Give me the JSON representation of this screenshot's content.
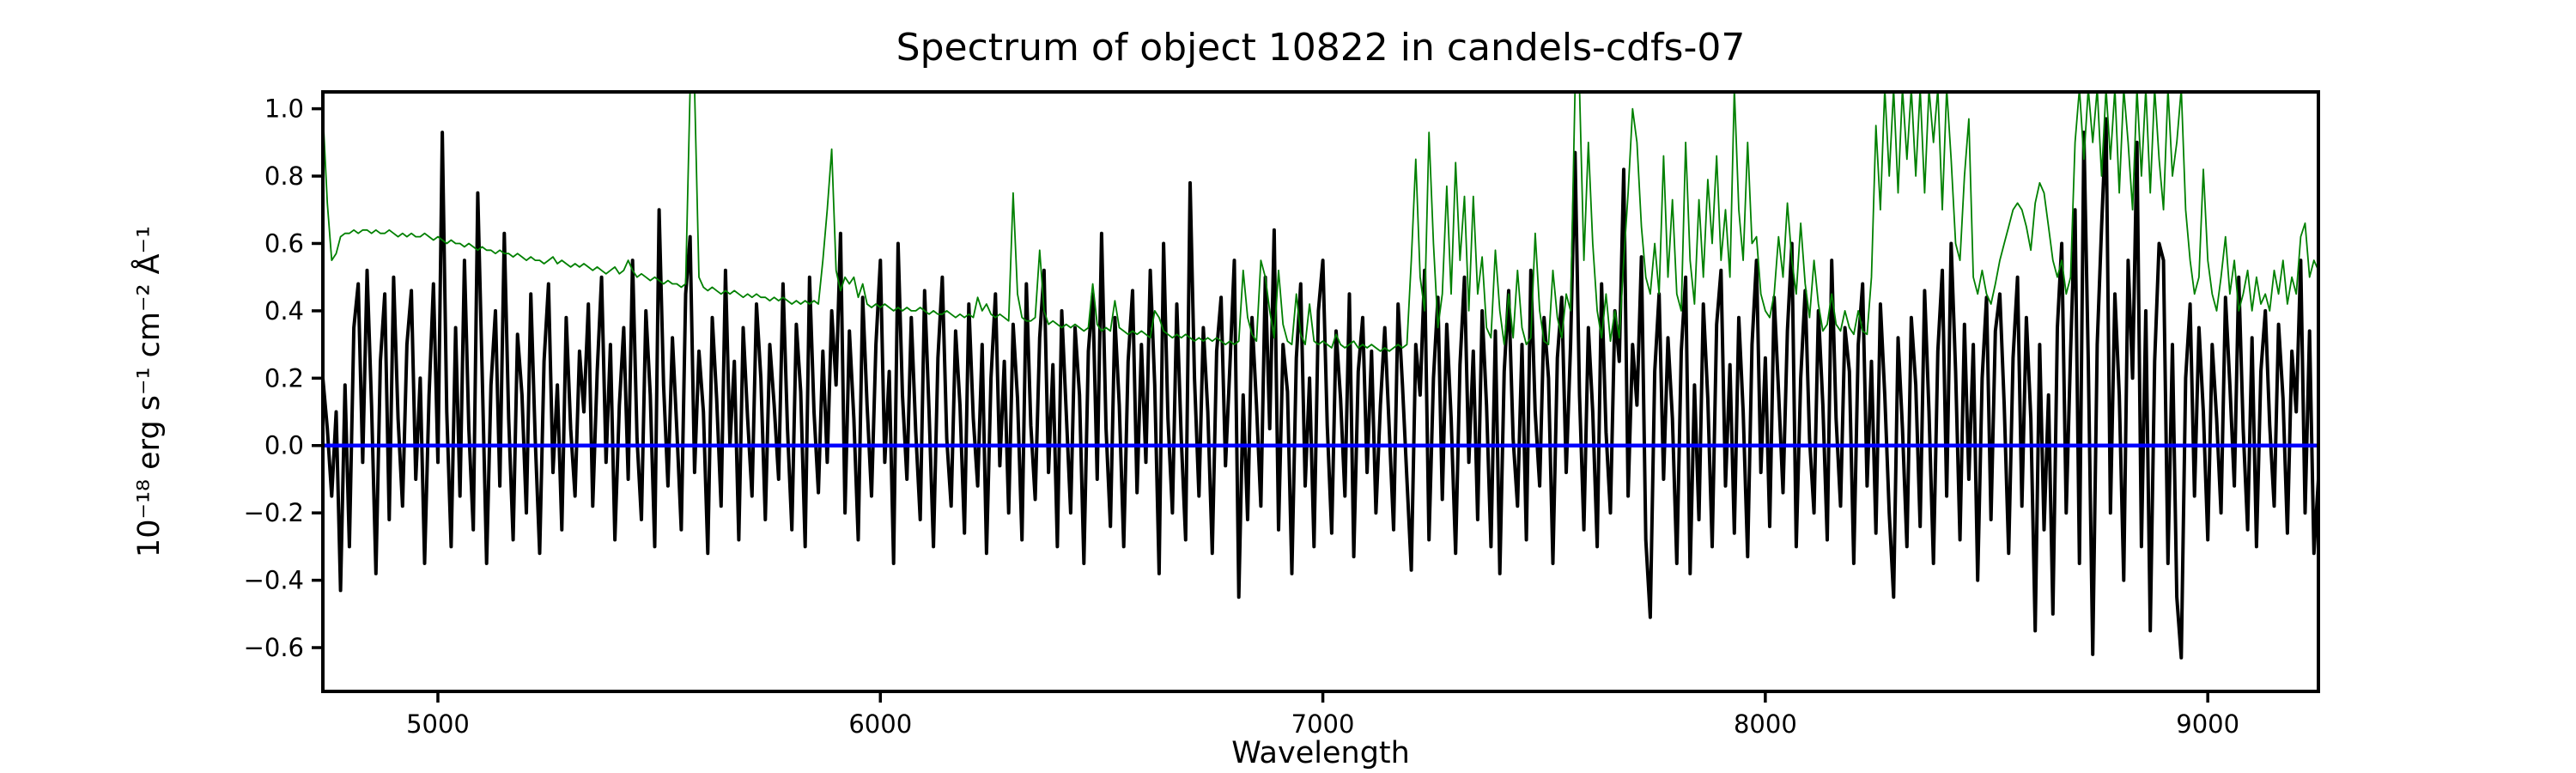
{
  "figure": {
    "title": "Spectrum of object 10822 in candels-cdfs-07",
    "xlabel": "Wavelength",
    "ylabel": "10⁻¹⁸ erg s⁻¹ cm⁻² Å⁻¹",
    "background_color": "#ffffff",
    "axis_color": "#000000"
  },
  "chart_data": {
    "type": "line",
    "title": "Spectrum of object 10822 in candels-cdfs-07",
    "xlabel": "Wavelength",
    "ylabel": "10⁻¹⁸ erg s⁻¹ cm⁻² Å⁻¹",
    "xlim": [
      4740,
      9250
    ],
    "ylim": [
      -0.73,
      1.05
    ],
    "xticks": [
      5000,
      6000,
      7000,
      8000,
      9000
    ],
    "yticks": [
      1.0,
      0.8,
      0.6,
      0.4,
      0.2,
      0.0,
      -0.2,
      -0.4,
      -0.6
    ],
    "grid": false,
    "legend": null,
    "x_start": 4740,
    "x_step": 10,
    "series": [
      {
        "name": "object-flux-spectrum",
        "color": "#000000",
        "linewidth": 4,
        "values": [
          0.2,
          0.05,
          -0.15,
          0.1,
          -0.43,
          0.18,
          -0.3,
          0.35,
          0.48,
          -0.05,
          0.52,
          0.12,
          -0.38,
          0.25,
          0.45,
          -0.22,
          0.5,
          0.08,
          -0.18,
          0.3,
          0.46,
          -0.1,
          0.2,
          -0.35,
          0.15,
          0.48,
          -0.05,
          0.93,
          0.1,
          -0.3,
          0.35,
          -0.15,
          0.55,
          0.05,
          -0.25,
          0.75,
          0.22,
          -0.35,
          0.18,
          0.4,
          -0.12,
          0.63,
          0.08,
          -0.28,
          0.33,
          0.15,
          -0.2,
          0.45,
          0.02,
          -0.32,
          0.25,
          0.48,
          -0.08,
          0.18,
          -0.25,
          0.38,
          0.05,
          -0.15,
          0.28,
          0.1,
          0.42,
          -0.18,
          0.22,
          0.5,
          -0.05,
          0.3,
          -0.28,
          0.12,
          0.35,
          -0.1,
          0.55,
          0.02,
          -0.22,
          0.4,
          0.15,
          -0.3,
          0.7,
          0.18,
          -0.12,
          0.32,
          0.05,
          -0.25,
          0.45,
          0.62,
          -0.08,
          0.28,
          0.1,
          -0.32,
          0.38,
          0.14,
          -0.18,
          0.52,
          0.0,
          0.25,
          -0.28,
          0.35,
          0.08,
          -0.15,
          0.42,
          0.2,
          -0.22,
          0.3,
          0.12,
          -0.1,
          0.48,
          0.05,
          -0.25,
          0.36,
          0.16,
          -0.3,
          0.5,
          0.1,
          -0.14,
          0.28,
          -0.05,
          0.4,
          0.18,
          0.63,
          -0.2,
          0.34,
          0.08,
          -0.28,
          0.44,
          0.12,
          -0.15,
          0.3,
          0.55,
          -0.05,
          0.22,
          -0.35,
          0.6,
          0.15,
          -0.1,
          0.38,
          0.04,
          -0.22,
          0.46,
          0.1,
          -0.3,
          0.26,
          0.5,
          0.02,
          -0.18,
          0.34,
          0.12,
          -0.26,
          0.42,
          0.08,
          -0.12,
          0.3,
          -0.32,
          0.2,
          0.45,
          -0.06,
          0.25,
          -0.2,
          0.36,
          0.14,
          -0.28,
          0.48,
          0.06,
          -0.16,
          0.32,
          0.52,
          -0.08,
          0.24,
          -0.3,
          0.4,
          0.1,
          -0.2,
          0.35,
          0.15,
          -0.35,
          0.28,
          0.45,
          -0.1,
          0.63,
          0.05,
          -0.24,
          0.38,
          0.12,
          -0.3,
          0.25,
          0.46,
          -0.14,
          0.3,
          -0.05,
          0.52,
          0.18,
          -0.38,
          0.6,
          0.08,
          -0.2,
          0.42,
          0.02,
          -0.28,
          0.78,
          0.2,
          -0.15,
          0.35,
          0.1,
          -0.32,
          0.28,
          0.44,
          -0.06,
          0.24,
          0.55,
          -0.45,
          0.15,
          -0.22,
          0.38,
          0.12,
          -0.18,
          0.5,
          0.05,
          0.64,
          -0.25,
          0.3,
          0.16,
          -0.38,
          0.26,
          0.48,
          -0.12,
          0.2,
          -0.3,
          0.4,
          0.55,
          0.06,
          -0.26,
          0.34,
          0.14,
          -0.15,
          0.45,
          -0.33,
          0.22,
          0.38,
          -0.08,
          0.28,
          -0.2,
          0.12,
          0.35,
          0.05,
          -0.25,
          0.42,
          0.18,
          -0.1,
          -0.37,
          0.3,
          0.15,
          0.52,
          -0.28,
          0.2,
          0.44,
          -0.16,
          0.36,
          0.08,
          -0.32,
          0.24,
          0.5,
          -0.05,
          0.28,
          -0.22,
          0.4,
          0.12,
          -0.3,
          0.34,
          -0.38,
          0.22,
          0.46,
          0.02,
          -0.18,
          0.3,
          -0.28,
          0.52,
          0.1,
          -0.12,
          0.38,
          0.2,
          -0.35,
          0.26,
          0.44,
          -0.08,
          0.3,
          0.87,
          0.15,
          -0.25,
          0.35,
          0.1,
          -0.3,
          0.48,
          0.04,
          -0.2,
          0.4,
          0.25,
          0.82,
          -0.15,
          0.3,
          0.12,
          0.56,
          -0.28,
          -0.51,
          0.22,
          0.45,
          -0.1,
          0.32,
          0.08,
          -0.35,
          0.28,
          0.5,
          -0.38,
          0.18,
          -0.22,
          0.42,
          0.14,
          -0.3,
          0.36,
          0.52,
          -0.12,
          0.24,
          -0.26,
          0.38,
          0.1,
          -0.33,
          0.3,
          0.55,
          -0.08,
          0.26,
          -0.24,
          0.44,
          0.16,
          -0.14,
          0.34,
          0.6,
          -0.3,
          0.2,
          0.46,
          0.02,
          -0.2,
          0.4,
          0.12,
          -0.28,
          0.55,
          0.08,
          -0.18,
          0.35,
          0.22,
          -0.35,
          0.3,
          0.48,
          -0.12,
          0.25,
          -0.26,
          0.42,
          0.15,
          -0.2,
          -0.45,
          0.32,
          0.05,
          -0.3,
          0.38,
          0.18,
          -0.24,
          0.46,
          0.1,
          -0.35,
          0.28,
          0.52,
          -0.15,
          0.6,
          0.22,
          -0.28,
          0.36,
          -0.1,
          0.3,
          -0.4,
          0.2,
          0.44,
          -0.22,
          0.34,
          0.45,
          0.12,
          -0.32,
          0.26,
          0.5,
          -0.18,
          0.38,
          0.08,
          -0.55,
          0.3,
          -0.25,
          0.15,
          -0.5,
          0.35,
          0.6,
          -0.2,
          0.28,
          0.7,
          -0.35,
          0.93,
          0.25,
          -0.62,
          0.3,
          0.65,
          0.97,
          -0.2,
          0.45,
          0.15,
          -0.4,
          0.55,
          0.2,
          0.9,
          -0.3,
          0.4,
          -0.55,
          0.25,
          0.6,
          0.55,
          -0.35,
          0.3,
          -0.45,
          -0.63,
          0.2,
          0.42,
          -0.15,
          0.35,
          0.1,
          -0.28,
          0.3,
          0.08,
          -0.2,
          0.44,
          0.18,
          -0.12,
          0.5,
          0.05,
          -0.25,
          0.32,
          -0.3,
          0.22,
          0.4,
          0.06,
          -0.18,
          0.36,
          0.14,
          -0.26,
          0.28,
          0.1,
          0.55,
          -0.2,
          0.34,
          -0.32,
          -0.1
        ]
      },
      {
        "name": "noise-spectrum",
        "color": "#008000",
        "linewidth": 1.8,
        "values": [
          0.99,
          0.72,
          0.55,
          0.57,
          0.62,
          0.63,
          0.63,
          0.64,
          0.63,
          0.64,
          0.64,
          0.63,
          0.64,
          0.63,
          0.63,
          0.64,
          0.63,
          0.62,
          0.63,
          0.62,
          0.63,
          0.62,
          0.62,
          0.63,
          0.62,
          0.61,
          0.62,
          0.61,
          0.6,
          0.61,
          0.6,
          0.6,
          0.59,
          0.6,
          0.59,
          0.58,
          0.59,
          0.58,
          0.58,
          0.57,
          0.58,
          0.57,
          0.57,
          0.56,
          0.57,
          0.56,
          0.55,
          0.56,
          0.55,
          0.55,
          0.54,
          0.55,
          0.56,
          0.54,
          0.55,
          0.54,
          0.53,
          0.54,
          0.53,
          0.54,
          0.53,
          0.52,
          0.53,
          0.52,
          0.51,
          0.52,
          0.53,
          0.51,
          0.52,
          0.55,
          0.52,
          0.5,
          0.51,
          0.5,
          0.49,
          0.5,
          0.49,
          0.48,
          0.49,
          0.48,
          0.48,
          0.47,
          0.48,
          1.06,
          1.06,
          0.5,
          0.47,
          0.46,
          0.47,
          0.46,
          0.45,
          0.46,
          0.45,
          0.46,
          0.45,
          0.44,
          0.45,
          0.44,
          0.45,
          0.44,
          0.44,
          0.43,
          0.44,
          0.43,
          0.44,
          0.43,
          0.42,
          0.43,
          0.42,
          0.43,
          0.42,
          0.43,
          0.42,
          0.55,
          0.7,
          0.88,
          0.52,
          0.46,
          0.5,
          0.48,
          0.5,
          0.44,
          0.48,
          0.42,
          0.41,
          0.42,
          0.41,
          0.42,
          0.41,
          0.4,
          0.41,
          0.4,
          0.41,
          0.4,
          0.4,
          0.41,
          0.4,
          0.39,
          0.4,
          0.39,
          0.39,
          0.4,
          0.39,
          0.38,
          0.39,
          0.38,
          0.39,
          0.38,
          0.44,
          0.4,
          0.42,
          0.39,
          0.38,
          0.39,
          0.38,
          0.37,
          0.75,
          0.45,
          0.38,
          0.37,
          0.37,
          0.38,
          0.58,
          0.4,
          0.36,
          0.37,
          0.36,
          0.35,
          0.36,
          0.35,
          0.36,
          0.35,
          0.34,
          0.35,
          0.48,
          0.36,
          0.34,
          0.35,
          0.34,
          0.43,
          0.35,
          0.34,
          0.33,
          0.34,
          0.33,
          0.34,
          0.33,
          0.32,
          0.4,
          0.38,
          0.34,
          0.33,
          0.32,
          0.33,
          0.32,
          0.33,
          0.32,
          0.31,
          0.32,
          0.31,
          0.32,
          0.31,
          0.32,
          0.31,
          0.3,
          0.31,
          0.3,
          0.31,
          0.52,
          0.38,
          0.33,
          0.31,
          0.55,
          0.5,
          0.4,
          0.32,
          0.52,
          0.36,
          0.31,
          0.3,
          0.45,
          0.33,
          0.3,
          0.42,
          0.31,
          0.3,
          0.31,
          0.3,
          0.29,
          0.33,
          0.3,
          0.29,
          0.3,
          0.31,
          0.29,
          0.3,
          0.29,
          0.3,
          0.29,
          0.28,
          0.29,
          0.28,
          0.29,
          0.3,
          0.29,
          0.3,
          0.55,
          0.85,
          0.5,
          0.4,
          0.93,
          0.6,
          0.35,
          0.45,
          0.77,
          0.45,
          0.84,
          0.55,
          0.74,
          0.4,
          0.74,
          0.45,
          0.56,
          0.35,
          0.32,
          0.58,
          0.4,
          0.3,
          0.45,
          0.32,
          0.52,
          0.35,
          0.3,
          0.32,
          0.63,
          0.4,
          0.31,
          0.3,
          0.52,
          0.38,
          0.32,
          0.45,
          0.4,
          1.06,
          1.06,
          0.55,
          0.9,
          0.6,
          0.4,
          0.32,
          0.45,
          0.31,
          0.4,
          0.32,
          0.55,
          0.75,
          1.0,
          0.9,
          0.65,
          0.5,
          0.45,
          0.6,
          0.45,
          0.86,
          0.5,
          0.73,
          0.45,
          0.4,
          0.9,
          0.55,
          0.42,
          0.73,
          0.5,
          0.79,
          0.6,
          0.86,
          0.55,
          0.7,
          0.5,
          1.06,
          0.7,
          0.55,
          0.9,
          0.6,
          0.62,
          0.45,
          0.4,
          0.38,
          0.45,
          0.62,
          0.5,
          0.72,
          0.55,
          0.45,
          0.66,
          0.48,
          0.38,
          0.55,
          0.42,
          0.34,
          0.36,
          0.45,
          0.36,
          0.34,
          0.4,
          0.35,
          0.33,
          0.4,
          0.34,
          0.33,
          0.5,
          0.95,
          0.7,
          1.06,
          0.8,
          1.06,
          0.75,
          1.06,
          0.85,
          1.06,
          0.8,
          1.06,
          0.75,
          1.06,
          0.9,
          1.06,
          0.7,
          1.06,
          0.85,
          0.6,
          0.55,
          0.8,
          0.97,
          0.5,
          0.45,
          0.52,
          0.45,
          0.42,
          0.48,
          0.55,
          0.6,
          0.65,
          0.7,
          0.72,
          0.7,
          0.65,
          0.58,
          0.72,
          0.78,
          0.75,
          0.65,
          0.55,
          0.5,
          0.55,
          0.45,
          0.5,
          0.9,
          1.06,
          0.85,
          1.06,
          0.9,
          1.06,
          0.8,
          1.06,
          0.85,
          1.06,
          0.75,
          1.06,
          0.9,
          0.7,
          1.06,
          0.8,
          1.06,
          0.75,
          1.06,
          0.85,
          0.7,
          1.06,
          0.8,
          0.9,
          1.06,
          0.7,
          0.55,
          0.45,
          0.5,
          0.82,
          0.55,
          0.45,
          0.4,
          0.5,
          0.62,
          0.45,
          0.55,
          0.4,
          0.45,
          0.52,
          0.4,
          0.5,
          0.42,
          0.45,
          0.4,
          0.52,
          0.45,
          0.55,
          0.42,
          0.5,
          0.45,
          0.62,
          0.66,
          0.5,
          0.55,
          0.52
        ]
      },
      {
        "name": "zero-flux-line",
        "color": "#0000ff",
        "linewidth": 4.5,
        "x": [
          4740,
          9250
        ],
        "values": [
          0.0,
          0.0
        ]
      }
    ]
  }
}
